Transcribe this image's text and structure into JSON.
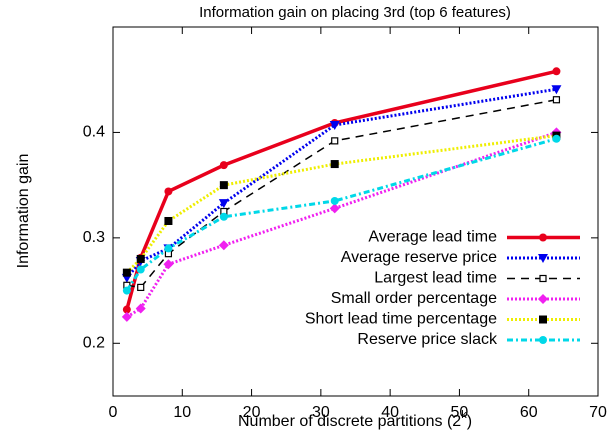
{
  "chart_data": {
    "type": "line",
    "title": "Information gain on placing 3rd (top 6 features)",
    "x_label": [
      "Number of discrete partitions (2",
      "k",
      ")"
    ],
    "y_label": "Information gain",
    "x": [
      2,
      4,
      8,
      16,
      32,
      64
    ],
    "xlim": [
      0,
      70
    ],
    "xticks": [
      0,
      10,
      20,
      30,
      40,
      50,
      60,
      70
    ],
    "ylim": [
      0.15,
      0.5
    ],
    "yticks": [
      0.2,
      0.3,
      0.4
    ],
    "legend": "lower right",
    "series": [
      {
        "name": "Average lead time",
        "color": "#e8001c",
        "line_style": "solid-thick",
        "marker": "circle",
        "values": [
          0.232,
          0.281,
          0.344,
          0.369,
          0.409,
          0.458
        ]
      },
      {
        "name": "Average reserve price",
        "color": "#0000ee",
        "line_style": "dotted",
        "marker": "triangle",
        "values": [
          0.262,
          0.278,
          0.29,
          0.333,
          0.407,
          0.441
        ]
      },
      {
        "name": "Largest lead time",
        "color": "#000000",
        "line_style": "dashed",
        "marker": "square-open",
        "values": [
          0.255,
          0.253,
          0.285,
          0.325,
          0.392,
          0.431
        ]
      },
      {
        "name": "Small order percentage",
        "color": "#f020f0",
        "line_style": "dotted",
        "marker": "diamond",
        "values": [
          0.225,
          0.233,
          0.275,
          0.293,
          0.328,
          0.4
        ]
      },
      {
        "name": "Short lead time percentage",
        "color": "#eeee00",
        "line_style": "dotted",
        "marker": "square",
        "values": [
          0.267,
          0.28,
          0.316,
          0.35,
          0.37,
          0.397
        ]
      },
      {
        "name": "Reserve price slack",
        "color": "#00d8e8",
        "line_style": "dashdot",
        "marker": "circle",
        "values": [
          0.25,
          0.27,
          0.29,
          0.32,
          0.335,
          0.394
        ]
      }
    ]
  }
}
